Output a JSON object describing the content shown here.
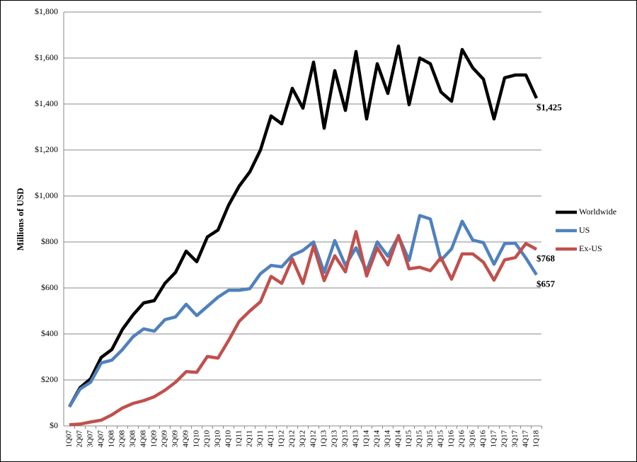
{
  "chart_data": {
    "type": "line",
    "y_label": "Millions of USD",
    "categories": [
      "1Q07",
      "2Q07",
      "3Q07",
      "4Q07",
      "1Q08",
      "2Q08",
      "3Q08",
      "4Q08",
      "1Q09",
      "2Q09",
      "3Q09",
      "4Q09",
      "1Q10",
      "2Q10",
      "3Q10",
      "4Q10",
      "1Q11",
      "2Q11",
      "3Q11",
      "4Q11",
      "1Q12",
      "2Q12",
      "3Q12",
      "4Q12",
      "1Q13",
      "2Q13",
      "3Q13",
      "4Q13",
      "1Q14",
      "2Q14",
      "3Q14",
      "4Q14",
      "1Q15",
      "2Q15",
      "3Q15",
      "4Q15",
      "1Q16",
      "2Q16",
      "3Q16",
      "4Q16",
      "1Q17",
      "2Q17",
      "3Q17",
      "4Q17",
      "1Q18"
    ],
    "series": [
      {
        "name": "Worldwide",
        "color": "#000000",
        "end_label": "$1,425",
        "values": [
          83,
          166,
          205,
          298,
          332,
          420,
          483,
          535,
          545,
          620,
          668,
          760,
          714,
          822,
          852,
          960,
          1043,
          1105,
          1200,
          1348,
          1314,
          1468,
          1382,
          1582,
          1295,
          1545,
          1372,
          1628,
          1335,
          1575,
          1446,
          1652,
          1397,
          1600,
          1575,
          1452,
          1412,
          1637,
          1557,
          1508,
          1335,
          1514,
          1526,
          1526,
          1425
        ]
      },
      {
        "name": "US",
        "color": "#4f81bd",
        "end_label": "$657",
        "values": [
          83,
          160,
          190,
          274,
          286,
          332,
          388,
          422,
          412,
          462,
          474,
          529,
          480,
          520,
          560,
          590,
          590,
          597,
          662,
          698,
          692,
          742,
          763,
          800,
          668,
          806,
          698,
          775,
          674,
          800,
          738,
          825,
          720,
          915,
          900,
          720,
          770,
          890,
          808,
          797,
          703,
          793,
          795,
          730,
          657
        ]
      },
      {
        "name": "Ex-US",
        "color": "#c0504d",
        "end_label": "$768",
        "values": [
          5,
          8,
          17,
          25,
          48,
          78,
          98,
          110,
          127,
          155,
          190,
          236,
          233,
          302,
          295,
          372,
          455,
          500,
          540,
          650,
          620,
          726,
          620,
          783,
          632,
          740,
          670,
          845,
          652,
          775,
          700,
          828,
          683,
          690,
          675,
          732,
          638,
          748,
          748,
          712,
          634,
          722,
          732,
          793,
          768
        ]
      }
    ],
    "ylim": [
      0,
      1800
    ],
    "yticks": [
      {
        "value": 0,
        "label": "$0"
      },
      {
        "value": 200,
        "label": "$200"
      },
      {
        "value": 400,
        "label": "$400"
      },
      {
        "value": 600,
        "label": "$600"
      },
      {
        "value": 800,
        "label": "$800"
      },
      {
        "value": 1000,
        "label": "$1,000"
      },
      {
        "value": 1200,
        "label": "$1,200"
      },
      {
        "value": 1400,
        "label": "$1,400"
      },
      {
        "value": 1600,
        "label": "$1,600"
      },
      {
        "value": 1800,
        "label": "$1,800"
      }
    ],
    "grid": true,
    "legend": "right"
  }
}
